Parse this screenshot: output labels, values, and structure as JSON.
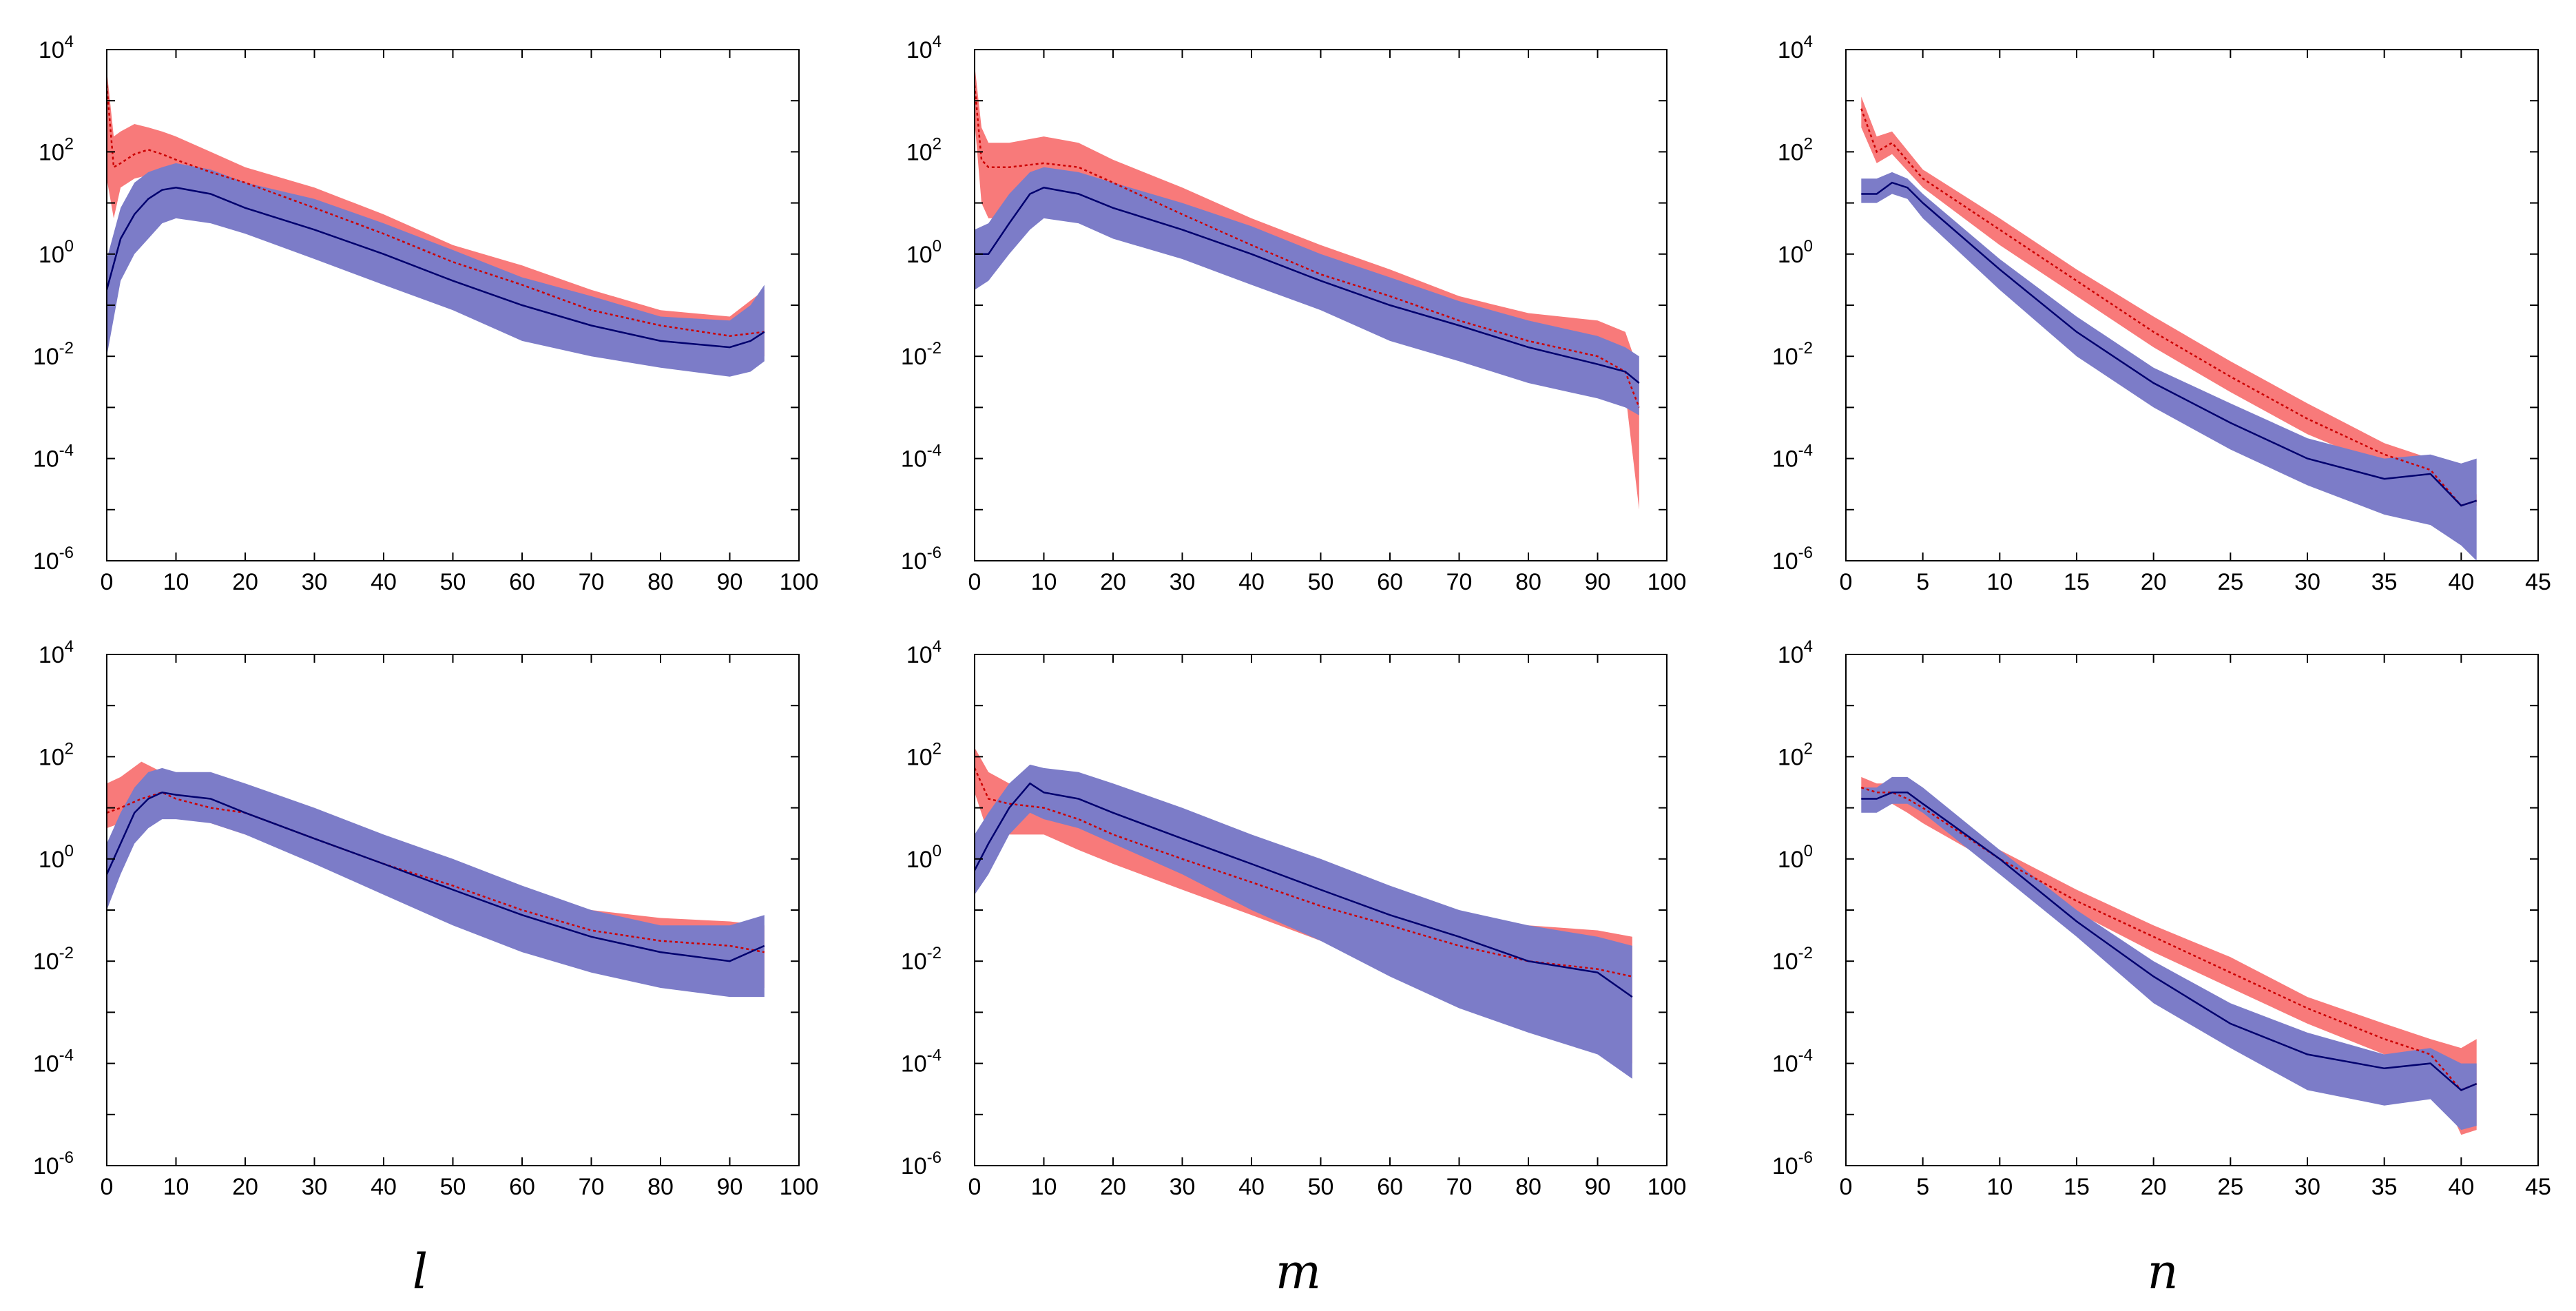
{
  "figure": {
    "colors": {
      "red_band": "#f87a7a",
      "blue_band": "#7c7cc8",
      "red_line": "#cc0000",
      "blue_line": "#00006e"
    },
    "xaxis_titles": [
      "l",
      "m",
      "n"
    ]
  },
  "chart_data": [
    {
      "type": "area",
      "panel": "top-left",
      "yscale": "log",
      "xlim": [
        0,
        100
      ],
      "ylim": [
        1e-06,
        10000.0
      ],
      "xticks": [
        0,
        10,
        20,
        30,
        40,
        50,
        60,
        70,
        80,
        90,
        100
      ],
      "xlabel": "",
      "series": [
        {
          "name": "red",
          "style": "dotted",
          "x": [
            0,
            1,
            2,
            4,
            6,
            8,
            10,
            15,
            20,
            30,
            40,
            50,
            60,
            70,
            80,
            90,
            95
          ],
          "median": [
            2000,
            50,
            60,
            90,
            110,
            90,
            70,
            40,
            25,
            8,
            2.5,
            0.7,
            0.25,
            0.08,
            0.04,
            0.025,
            0.03
          ],
          "lower": [
            30,
            5,
            20,
            30,
            35,
            30,
            25,
            15,
            10,
            3,
            1,
            0.3,
            0.1,
            0.04,
            0.02,
            0.012,
            0.01
          ],
          "upper": [
            4000,
            200,
            250,
            350,
            300,
            250,
            200,
            100,
            50,
            20,
            6,
            1.5,
            0.6,
            0.2,
            0.08,
            0.06,
            0.2
          ]
        },
        {
          "name": "blue",
          "style": "solid",
          "x": [
            0,
            2,
            4,
            6,
            8,
            10,
            15,
            20,
            30,
            40,
            50,
            60,
            70,
            80,
            90,
            93,
            95
          ],
          "median": [
            0.2,
            2,
            6,
            12,
            18,
            20,
            15,
            8,
            3,
            1,
            0.3,
            0.1,
            0.04,
            0.02,
            0.015,
            0.02,
            0.03
          ],
          "lower": [
            0.01,
            0.3,
            1,
            2,
            4,
            5,
            4,
            2.5,
            0.8,
            0.25,
            0.08,
            0.02,
            0.01,
            0.006,
            0.004,
            0.005,
            0.008
          ],
          "upper": [
            0.8,
            8,
            25,
            40,
            50,
            60,
            45,
            25,
            12,
            4,
            1.2,
            0.35,
            0.15,
            0.06,
            0.05,
            0.1,
            0.25
          ]
        }
      ]
    },
    {
      "type": "area",
      "panel": "top-middle",
      "yscale": "log",
      "xlim": [
        0,
        100
      ],
      "ylim": [
        1e-06,
        10000.0
      ],
      "xticks": [
        0,
        10,
        20,
        30,
        40,
        50,
        60,
        70,
        80,
        90,
        100
      ],
      "xlabel": "",
      "series": [
        {
          "name": "red",
          "style": "dotted",
          "x": [
            0,
            1,
            2,
            5,
            10,
            15,
            20,
            30,
            40,
            50,
            60,
            70,
            80,
            90,
            94,
            96
          ],
          "median": [
            2000,
            70,
            50,
            50,
            60,
            50,
            25,
            6,
            1.5,
            0.4,
            0.15,
            0.05,
            0.02,
            0.01,
            0.005,
            0.001
          ],
          "lower": [
            400,
            10,
            5,
            5,
            10,
            12,
            8,
            2,
            0.6,
            0.15,
            0.05,
            0.02,
            0.008,
            0.004,
            0.002,
            1e-05
          ],
          "upper": [
            5000,
            300,
            150,
            150,
            200,
            150,
            70,
            20,
            5,
            1.5,
            0.5,
            0.15,
            0.07,
            0.05,
            0.03,
            0.005
          ]
        },
        {
          "name": "blue",
          "style": "solid",
          "x": [
            0,
            2,
            5,
            8,
            10,
            15,
            20,
            30,
            40,
            50,
            60,
            70,
            80,
            90,
            94,
            96
          ],
          "median": [
            1,
            1,
            4,
            15,
            20,
            15,
            8,
            3,
            1,
            0.3,
            0.1,
            0.04,
            0.015,
            0.007,
            0.005,
            0.003
          ],
          "lower": [
            0.2,
            0.3,
            1,
            3,
            5,
            4,
            2,
            0.8,
            0.25,
            0.08,
            0.02,
            0.008,
            0.003,
            0.0015,
            0.001,
            0.0007
          ],
          "upper": [
            3,
            4,
            15,
            40,
            50,
            40,
            25,
            10,
            3.5,
            1,
            0.35,
            0.12,
            0.05,
            0.025,
            0.015,
            0.01
          ]
        }
      ]
    },
    {
      "type": "area",
      "panel": "top-right",
      "yscale": "log",
      "xlim": [
        0,
        45
      ],
      "ylim": [
        1e-06,
        10000.0
      ],
      "xticks": [
        0,
        5,
        10,
        15,
        20,
        25,
        30,
        35,
        40,
        45
      ],
      "xlabel": "",
      "series": [
        {
          "name": "red",
          "style": "dotted",
          "x": [
            1,
            2,
            3,
            5,
            10,
            15,
            20,
            25,
            30,
            35,
            38,
            40,
            41
          ],
          "median": [
            700,
            100,
            150,
            30,
            3,
            0.3,
            0.03,
            0.004,
            0.0006,
            0.00012,
            6e-05,
            1.2e-05,
            1.5e-05
          ],
          "lower": [
            300,
            60,
            90,
            20,
            1.5,
            0.15,
            0.015,
            0.002,
            0.0003,
            7e-05,
            4e-05,
            9e-06,
            1.2e-05
          ],
          "upper": [
            1200,
            200,
            250,
            45,
            5,
            0.5,
            0.06,
            0.008,
            0.0012,
            0.0002,
            0.0001,
            2e-05,
            2e-05
          ]
        },
        {
          "name": "blue",
          "style": "solid",
          "x": [
            1,
            2,
            3,
            4,
            5,
            10,
            15,
            20,
            25,
            30,
            35,
            38,
            40,
            41
          ],
          "median": [
            15,
            15,
            25,
            20,
            10,
            0.5,
            0.03,
            0.003,
            0.0005,
            0.0001,
            4e-05,
            5e-05,
            1.2e-05,
            1.5e-05
          ],
          "lower": [
            10,
            10,
            15,
            12,
            5,
            0.2,
            0.01,
            0.001,
            0.00015,
            3e-05,
            8e-06,
            5e-06,
            2e-06,
            1e-06
          ],
          "upper": [
            30,
            30,
            40,
            30,
            15,
            0.8,
            0.06,
            0.006,
            0.0012,
            0.00025,
            0.0001,
            0.00012,
            8e-05,
            0.0001
          ]
        }
      ]
    },
    {
      "type": "area",
      "panel": "bottom-left",
      "yscale": "log",
      "xlim": [
        0,
        100
      ],
      "ylim": [
        1e-06,
        10000.0
      ],
      "xticks": [
        0,
        10,
        20,
        30,
        40,
        50,
        60,
        70,
        80,
        90,
        100
      ],
      "xlabel": "l",
      "series": [
        {
          "name": "red",
          "style": "dotted",
          "x": [
            0,
            2,
            5,
            8,
            10,
            15,
            20,
            30,
            40,
            50,
            60,
            70,
            80,
            90,
            95
          ],
          "median": [
            8,
            10,
            15,
            20,
            15,
            10,
            8,
            2.5,
            0.8,
            0.3,
            0.1,
            0.04,
            0.025,
            0.02,
            0.015
          ],
          "lower": [
            4,
            5,
            8,
            10,
            8,
            5,
            3,
            1,
            0.35,
            0.12,
            0.04,
            0.015,
            0.008,
            0.005,
            0.003
          ],
          "upper": [
            30,
            40,
            80,
            50,
            30,
            25,
            20,
            6,
            2,
            0.7,
            0.25,
            0.1,
            0.07,
            0.06,
            0.05
          ]
        },
        {
          "name": "blue",
          "style": "solid",
          "x": [
            0,
            2,
            4,
            6,
            8,
            10,
            15,
            20,
            30,
            40,
            50,
            60,
            70,
            80,
            90,
            95
          ],
          "median": [
            0.5,
            2,
            8,
            15,
            20,
            18,
            15,
            8,
            2.5,
            0.8,
            0.25,
            0.08,
            0.03,
            0.015,
            0.01,
            0.02
          ],
          "lower": [
            0.1,
            0.5,
            2,
            4,
            6,
            6,
            5,
            3,
            0.8,
            0.2,
            0.05,
            0.015,
            0.006,
            0.003,
            0.002,
            0.002
          ],
          "upper": [
            2,
            8,
            25,
            50,
            60,
            50,
            50,
            30,
            10,
            3,
            1,
            0.3,
            0.1,
            0.05,
            0.05,
            0.08
          ]
        }
      ]
    },
    {
      "type": "area",
      "panel": "bottom-middle",
      "yscale": "log",
      "xlim": [
        0,
        100
      ],
      "ylim": [
        1e-06,
        10000.0
      ],
      "xticks": [
        0,
        10,
        20,
        30,
        40,
        50,
        60,
        70,
        80,
        90,
        100
      ],
      "xlabel": "m",
      "series": [
        {
          "name": "red",
          "style": "dotted",
          "x": [
            0,
            2,
            5,
            10,
            15,
            20,
            30,
            40,
            50,
            60,
            70,
            80,
            90,
            95
          ],
          "median": [
            60,
            15,
            12,
            10,
            6,
            3,
            1,
            0.35,
            0.12,
            0.05,
            0.02,
            0.01,
            0.007,
            0.005
          ],
          "lower": [
            20,
            3,
            3,
            3,
            1.5,
            0.8,
            0.25,
            0.08,
            0.025,
            0.008,
            0.003,
            0.0012,
            0.0005,
            0.0001
          ],
          "upper": [
            150,
            50,
            30,
            25,
            15,
            8,
            3,
            1,
            0.4,
            0.15,
            0.07,
            0.05,
            0.04,
            0.03
          ]
        },
        {
          "name": "blue",
          "style": "solid",
          "x": [
            0,
            2,
            5,
            8,
            10,
            15,
            20,
            30,
            40,
            50,
            60,
            70,
            80,
            90,
            95
          ],
          "median": [
            0.6,
            2,
            10,
            30,
            20,
            15,
            8,
            2.5,
            0.8,
            0.25,
            0.08,
            0.03,
            0.01,
            0.006,
            0.002
          ],
          "lower": [
            0.2,
            0.5,
            3,
            8,
            6,
            4,
            2,
            0.5,
            0.1,
            0.025,
            0.005,
            0.0012,
            0.0004,
            0.00015,
            5e-05
          ],
          "upper": [
            3,
            8,
            30,
            70,
            60,
            50,
            30,
            10,
            3,
            1,
            0.3,
            0.1,
            0.05,
            0.03,
            0.02
          ]
        }
      ]
    },
    {
      "type": "area",
      "panel": "bottom-right",
      "yscale": "log",
      "xlim": [
        0,
        45
      ],
      "ylim": [
        1e-06,
        10000.0
      ],
      "xticks": [
        0,
        5,
        10,
        15,
        20,
        25,
        30,
        35,
        40,
        45
      ],
      "xlabel": "n",
      "series": [
        {
          "name": "red",
          "style": "dotted",
          "x": [
            1,
            2,
            3,
            4,
            5,
            10,
            15,
            20,
            25,
            30,
            35,
            38,
            40,
            41
          ],
          "median": [
            25,
            20,
            20,
            15,
            10,
            1,
            0.15,
            0.03,
            0.006,
            0.0012,
            0.0003,
            0.00015,
            3e-05,
            4e-05
          ],
          "lower": [
            15,
            12,
            12,
            8,
            5,
            0.7,
            0.09,
            0.015,
            0.003,
            0.0006,
            0.00015,
            8e-05,
            4e-06,
            5e-06
          ],
          "upper": [
            40,
            30,
            30,
            25,
            15,
            1.5,
            0.25,
            0.05,
            0.012,
            0.002,
            0.0006,
            0.0003,
            0.0002,
            0.0003
          ]
        },
        {
          "name": "blue",
          "style": "solid",
          "x": [
            1,
            2,
            3,
            4,
            5,
            10,
            15,
            20,
            25,
            30,
            35,
            38,
            40,
            41
          ],
          "median": [
            15,
            15,
            20,
            20,
            12,
            1,
            0.06,
            0.005,
            0.0006,
            0.00015,
            8e-05,
            0.0001,
            3e-05,
            4e-05
          ],
          "lower": [
            8,
            8,
            12,
            12,
            8,
            0.5,
            0.03,
            0.0015,
            0.0002,
            3e-05,
            1.5e-05,
            2e-05,
            5e-06,
            6e-06
          ],
          "upper": [
            25,
            25,
            40,
            40,
            25,
            1.5,
            0.1,
            0.01,
            0.0015,
            0.0004,
            0.00015,
            0.0002,
            0.0001,
            0.0001
          ]
        }
      ]
    }
  ]
}
